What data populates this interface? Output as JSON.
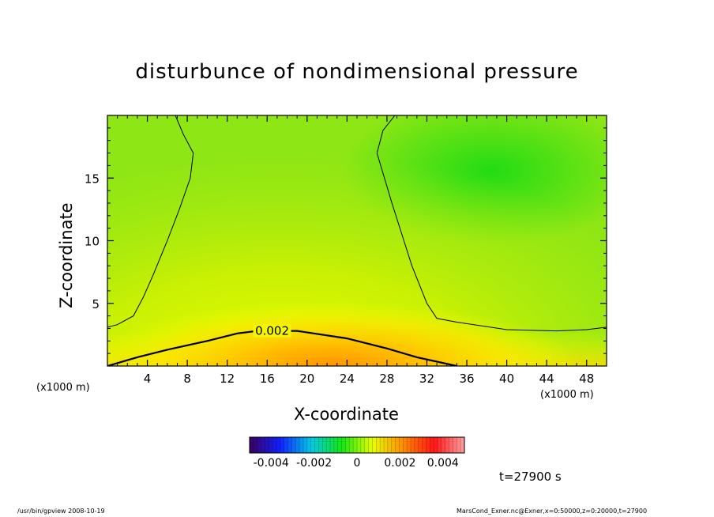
{
  "chart_data": {
    "type": "heatmap",
    "title": "disturbunce of nondimensional pressure",
    "xlabel": "X-coordinate",
    "ylabel": "Z-coordinate",
    "x_unit_label": "(x1000 m)",
    "xlim": [
      0,
      50
    ],
    "ylim": [
      0,
      20
    ],
    "x_ticks": [
      4,
      8,
      12,
      16,
      20,
      24,
      28,
      32,
      36,
      40,
      44,
      48
    ],
    "y_ticks": [
      5,
      10,
      15
    ],
    "contour_level_label": "0.002",
    "colorbar": {
      "vmin": -0.005,
      "vmax": 0.005,
      "tick_labels": [
        "-0.004",
        "-0.002",
        "0",
        "0.002",
        "0.004"
      ],
      "tick_values": [
        -0.004,
        -0.002,
        0,
        0.002,
        0.004
      ]
    },
    "contours": {
      "thin_left": [
        [
          0,
          3.1
        ],
        [
          1,
          3.3
        ],
        [
          2.6,
          4.0
        ],
        [
          3.6,
          5.5
        ],
        [
          4.6,
          7.3
        ],
        [
          6.0,
          10.0
        ],
        [
          7.2,
          12.5
        ],
        [
          8.3,
          15.0
        ],
        [
          8.6,
          17.0
        ],
        [
          7.6,
          18.5
        ],
        [
          6.8,
          20.0
        ]
      ],
      "thin_right": [
        [
          28.8,
          20.0
        ],
        [
          27.6,
          18.8
        ],
        [
          27.0,
          17.0
        ],
        [
          28.5,
          13.0
        ],
        [
          30.5,
          8.0
        ],
        [
          32.0,
          5.0
        ],
        [
          33.0,
          3.8
        ],
        [
          35.0,
          3.5
        ],
        [
          40.0,
          2.9
        ],
        [
          45.0,
          2.8
        ],
        [
          48.0,
          2.9
        ],
        [
          50.0,
          3.1
        ]
      ],
      "thick": [
        [
          0,
          0
        ],
        [
          3,
          0.7
        ],
        [
          6,
          1.3
        ],
        [
          10,
          2.0
        ],
        [
          13,
          2.6
        ],
        [
          15,
          2.8
        ],
        [
          19,
          2.8
        ],
        [
          24,
          2.2
        ],
        [
          28,
          1.4
        ],
        [
          31,
          0.7
        ],
        [
          35,
          0
        ]
      ]
    },
    "field_peak": {
      "x": 18,
      "z": 0,
      "value": 0.0035
    },
    "field_min": {
      "x": 42,
      "z": 16,
      "value": -0.0003
    }
  },
  "annotations": {
    "time": "t=27900 s",
    "footer_left": "/usr/bin/gpview   2008-10-19",
    "footer_right": "MarsCond_Exner.nc@Exner,x=0:50000,z=0:20000,t=27900"
  },
  "colors": {
    "frame": "#000000",
    "colormap": [
      "#3b0060",
      "#1020ff",
      "#00c8e6",
      "#14e614",
      "#e6ff00",
      "#ff8c00",
      "#ff1414",
      "#ffa0a0"
    ]
  }
}
